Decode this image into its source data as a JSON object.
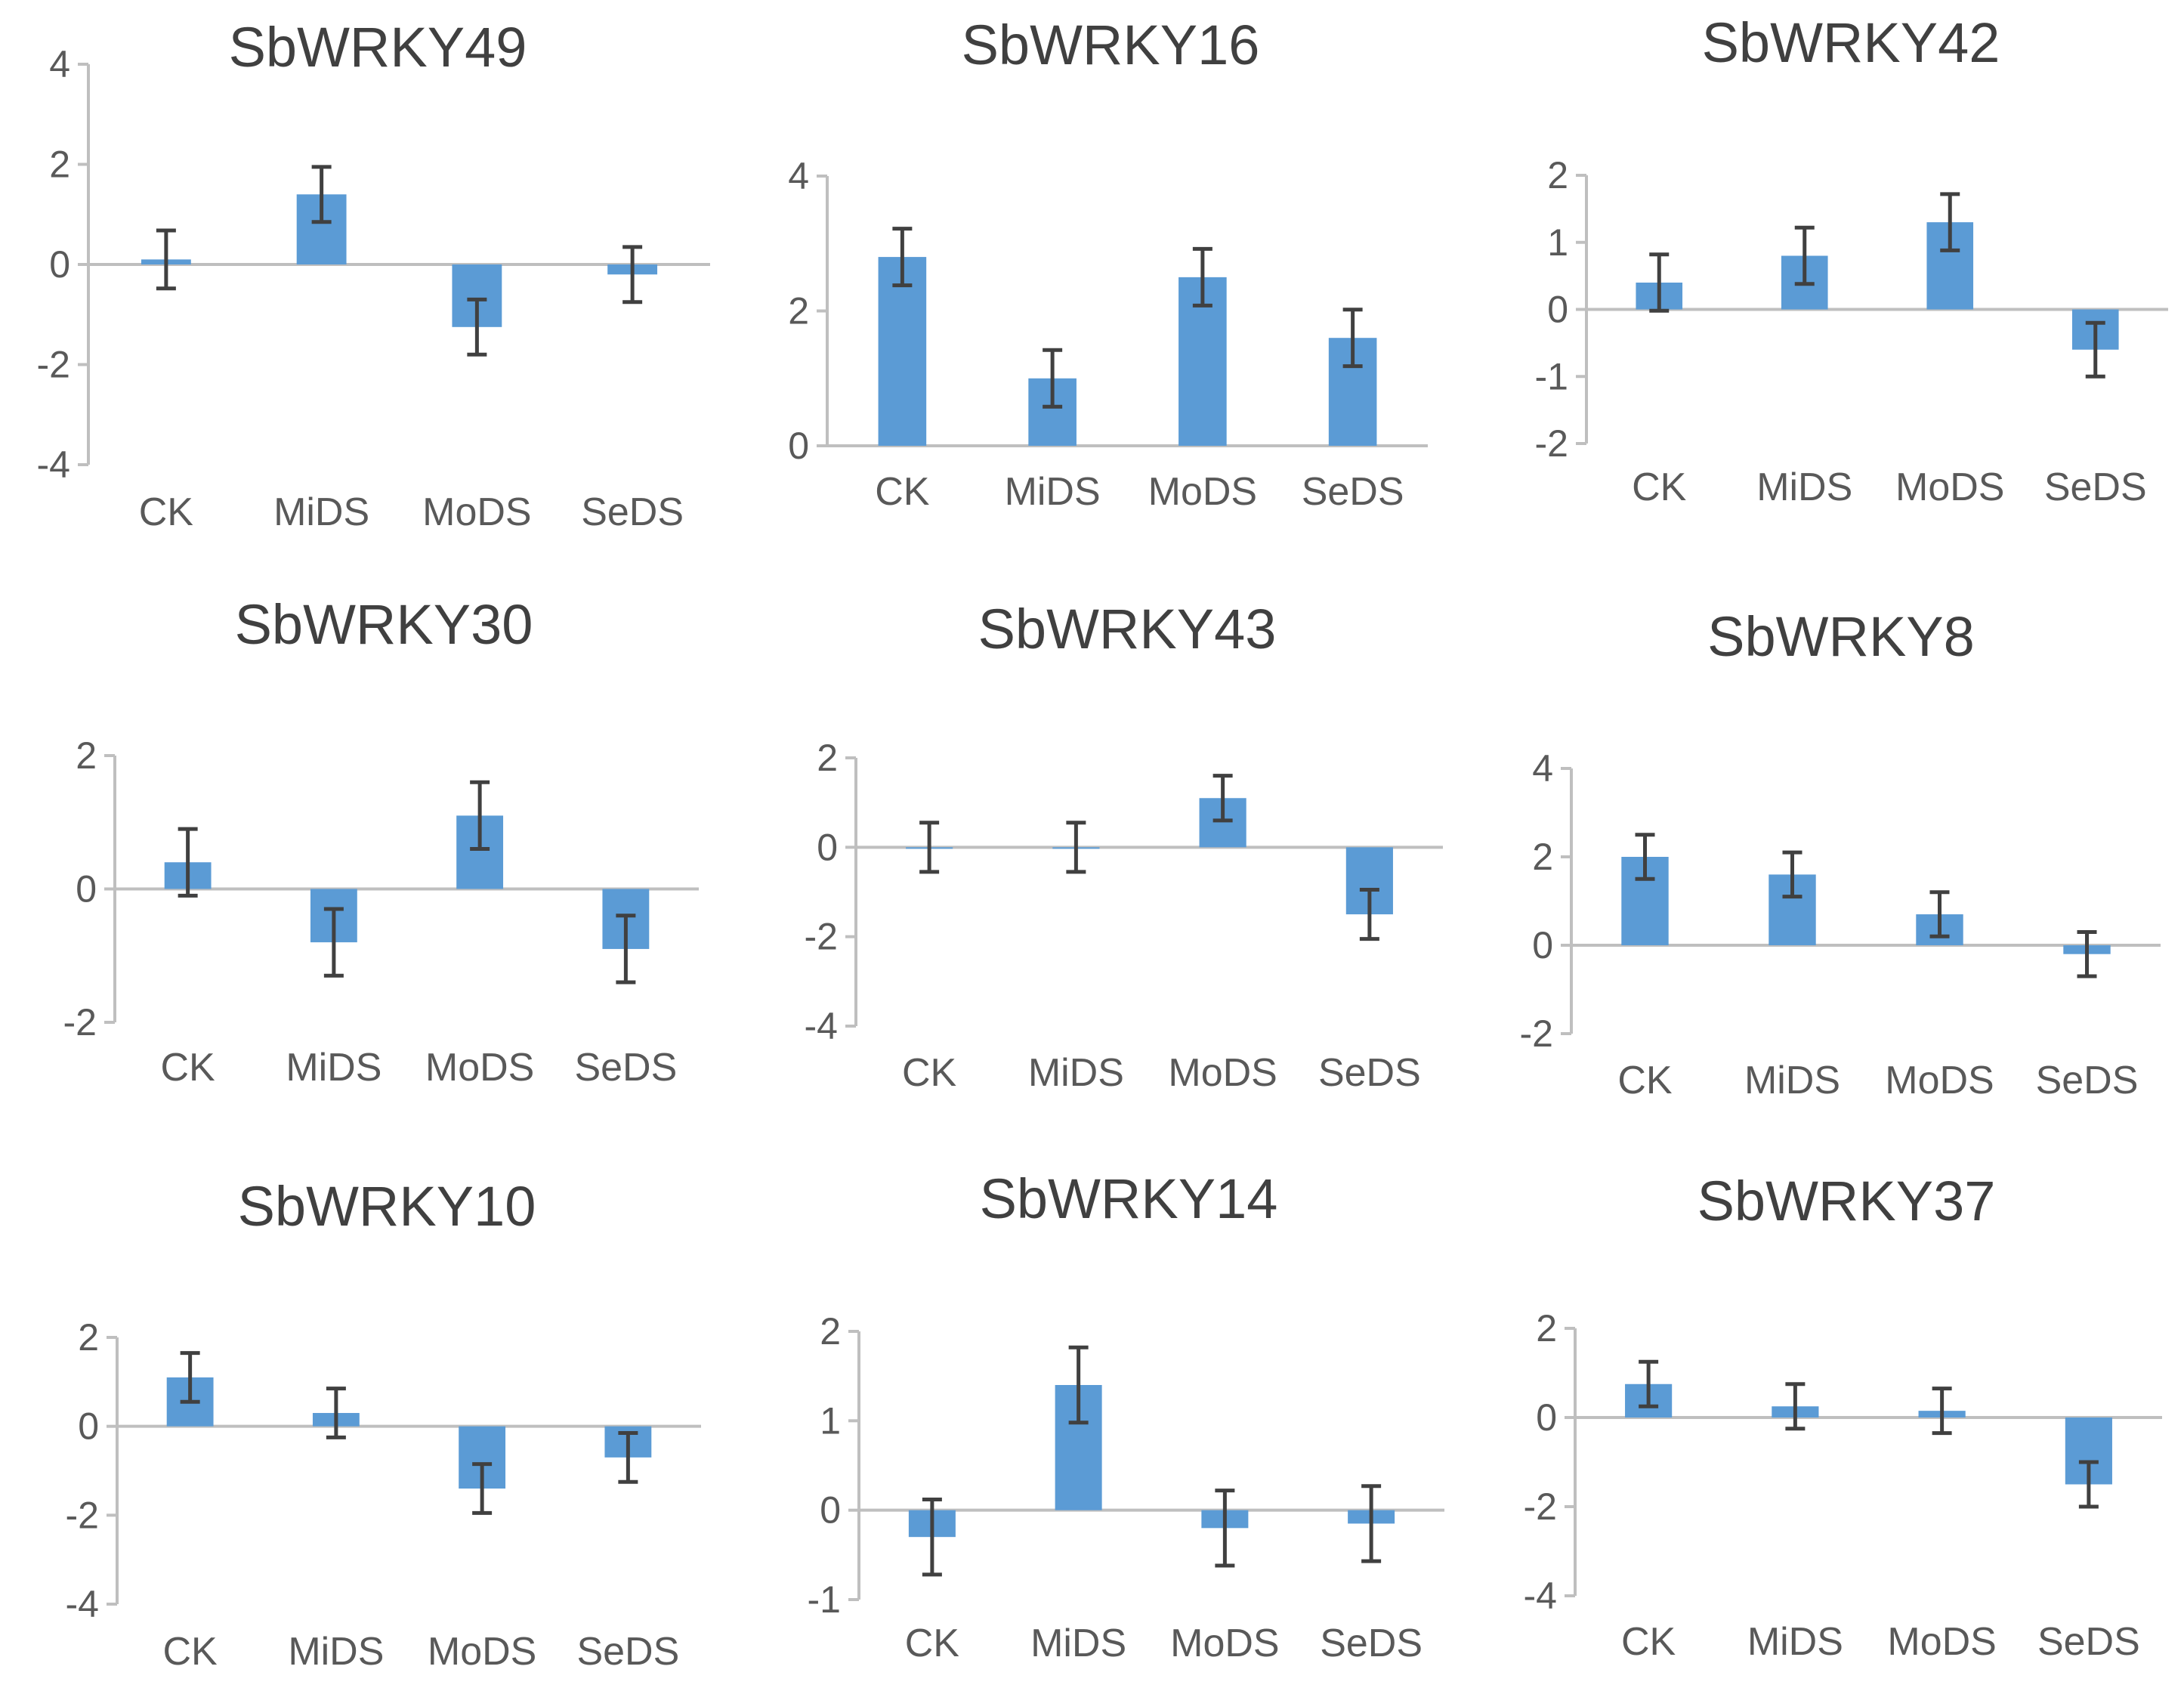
{
  "colors": {
    "bar": "#5b9bd5",
    "axis": "#bfbfbf",
    "error_bar": "#404040",
    "text": "#595959"
  },
  "chart_data": [
    {
      "type": "bar",
      "title": "SbWRKY49",
      "categories": [
        "CK",
        "MiDS",
        "MoDS",
        "SeDS"
      ],
      "values": [
        0.1,
        1.4,
        -1.25,
        -0.2
      ],
      "errors": [
        0.58,
        0.55,
        0.55,
        0.55
      ],
      "yticks": [
        4,
        2,
        0,
        -2,
        -4
      ],
      "ylim": [
        -4,
        4
      ]
    },
    {
      "type": "bar",
      "title": "SbWRKY16",
      "categories": [
        "CK",
        "MiDS",
        "MoDS",
        "SeDS"
      ],
      "values": [
        2.8,
        1.0,
        2.5,
        1.6
      ],
      "errors": [
        0.42,
        0.42,
        0.42,
        0.42
      ],
      "yticks": [
        4,
        2,
        0
      ],
      "ylim": [
        0,
        4
      ]
    },
    {
      "type": "bar",
      "title": "SbWRKY42",
      "categories": [
        "CK",
        "MiDS",
        "MoDS",
        "SeDS"
      ],
      "values": [
        0.4,
        0.8,
        1.3,
        -0.6
      ],
      "errors": [
        0.42,
        0.42,
        0.42,
        0.4
      ],
      "yticks": [
        2,
        1,
        0,
        -1,
        -2
      ],
      "ylim": [
        -2,
        2
      ]
    },
    {
      "type": "bar",
      "title": "SbWRKY30",
      "categories": [
        "CK",
        "MiDS",
        "MoDS",
        "SeDS"
      ],
      "values": [
        0.4,
        -0.8,
        1.1,
        -0.9
      ],
      "errors": [
        0.5,
        0.5,
        0.5,
        0.5
      ],
      "yticks": [
        2,
        0,
        -2
      ],
      "ylim": [
        -2,
        2
      ]
    },
    {
      "type": "bar",
      "title": "SbWRKY43",
      "categories": [
        "CK",
        "MiDS",
        "MoDS",
        "SeDS"
      ],
      "values": [
        0.0,
        0.0,
        1.1,
        -1.5
      ],
      "errors": [
        0.55,
        0.55,
        0.5,
        0.55
      ],
      "yticks": [
        2,
        0,
        -2,
        -4
      ],
      "ylim": [
        -4,
        2
      ]
    },
    {
      "type": "bar",
      "title": "SbWRKY8",
      "categories": [
        "CK",
        "MiDS",
        "MoDS",
        "SeDS"
      ],
      "values": [
        2.0,
        1.6,
        0.7,
        -0.2
      ],
      "errors": [
        0.5,
        0.5,
        0.5,
        0.5
      ],
      "yticks": [
        4,
        2,
        0,
        -2
      ],
      "ylim": [
        -2,
        4
      ]
    },
    {
      "type": "bar",
      "title": "SbWRKY10",
      "categories": [
        "CK",
        "MiDS",
        "MoDS",
        "SeDS"
      ],
      "values": [
        1.1,
        0.3,
        -1.4,
        -0.7
      ],
      "errors": [
        0.55,
        0.55,
        0.55,
        0.55
      ],
      "yticks": [
        2,
        0,
        -2,
        -4
      ],
      "ylim": [
        -4,
        2
      ]
    },
    {
      "type": "bar",
      "title": "SbWRKY14",
      "categories": [
        "CK",
        "MiDS",
        "MoDS",
        "SeDS"
      ],
      "values": [
        -0.3,
        1.4,
        -0.2,
        -0.15
      ],
      "errors": [
        0.42,
        0.42,
        0.42,
        0.42
      ],
      "yticks": [
        2,
        1,
        0,
        -1
      ],
      "ylim": [
        -1,
        2
      ]
    },
    {
      "type": "bar",
      "title": "SbWRKY37",
      "categories": [
        "CK",
        "MiDS",
        "MoDS",
        "SeDS"
      ],
      "values": [
        0.75,
        0.25,
        0.15,
        -1.5
      ],
      "errors": [
        0.5,
        0.5,
        0.5,
        0.5
      ],
      "yticks": [
        2,
        0,
        -2,
        -4
      ],
      "ylim": [
        -4,
        2
      ]
    }
  ]
}
